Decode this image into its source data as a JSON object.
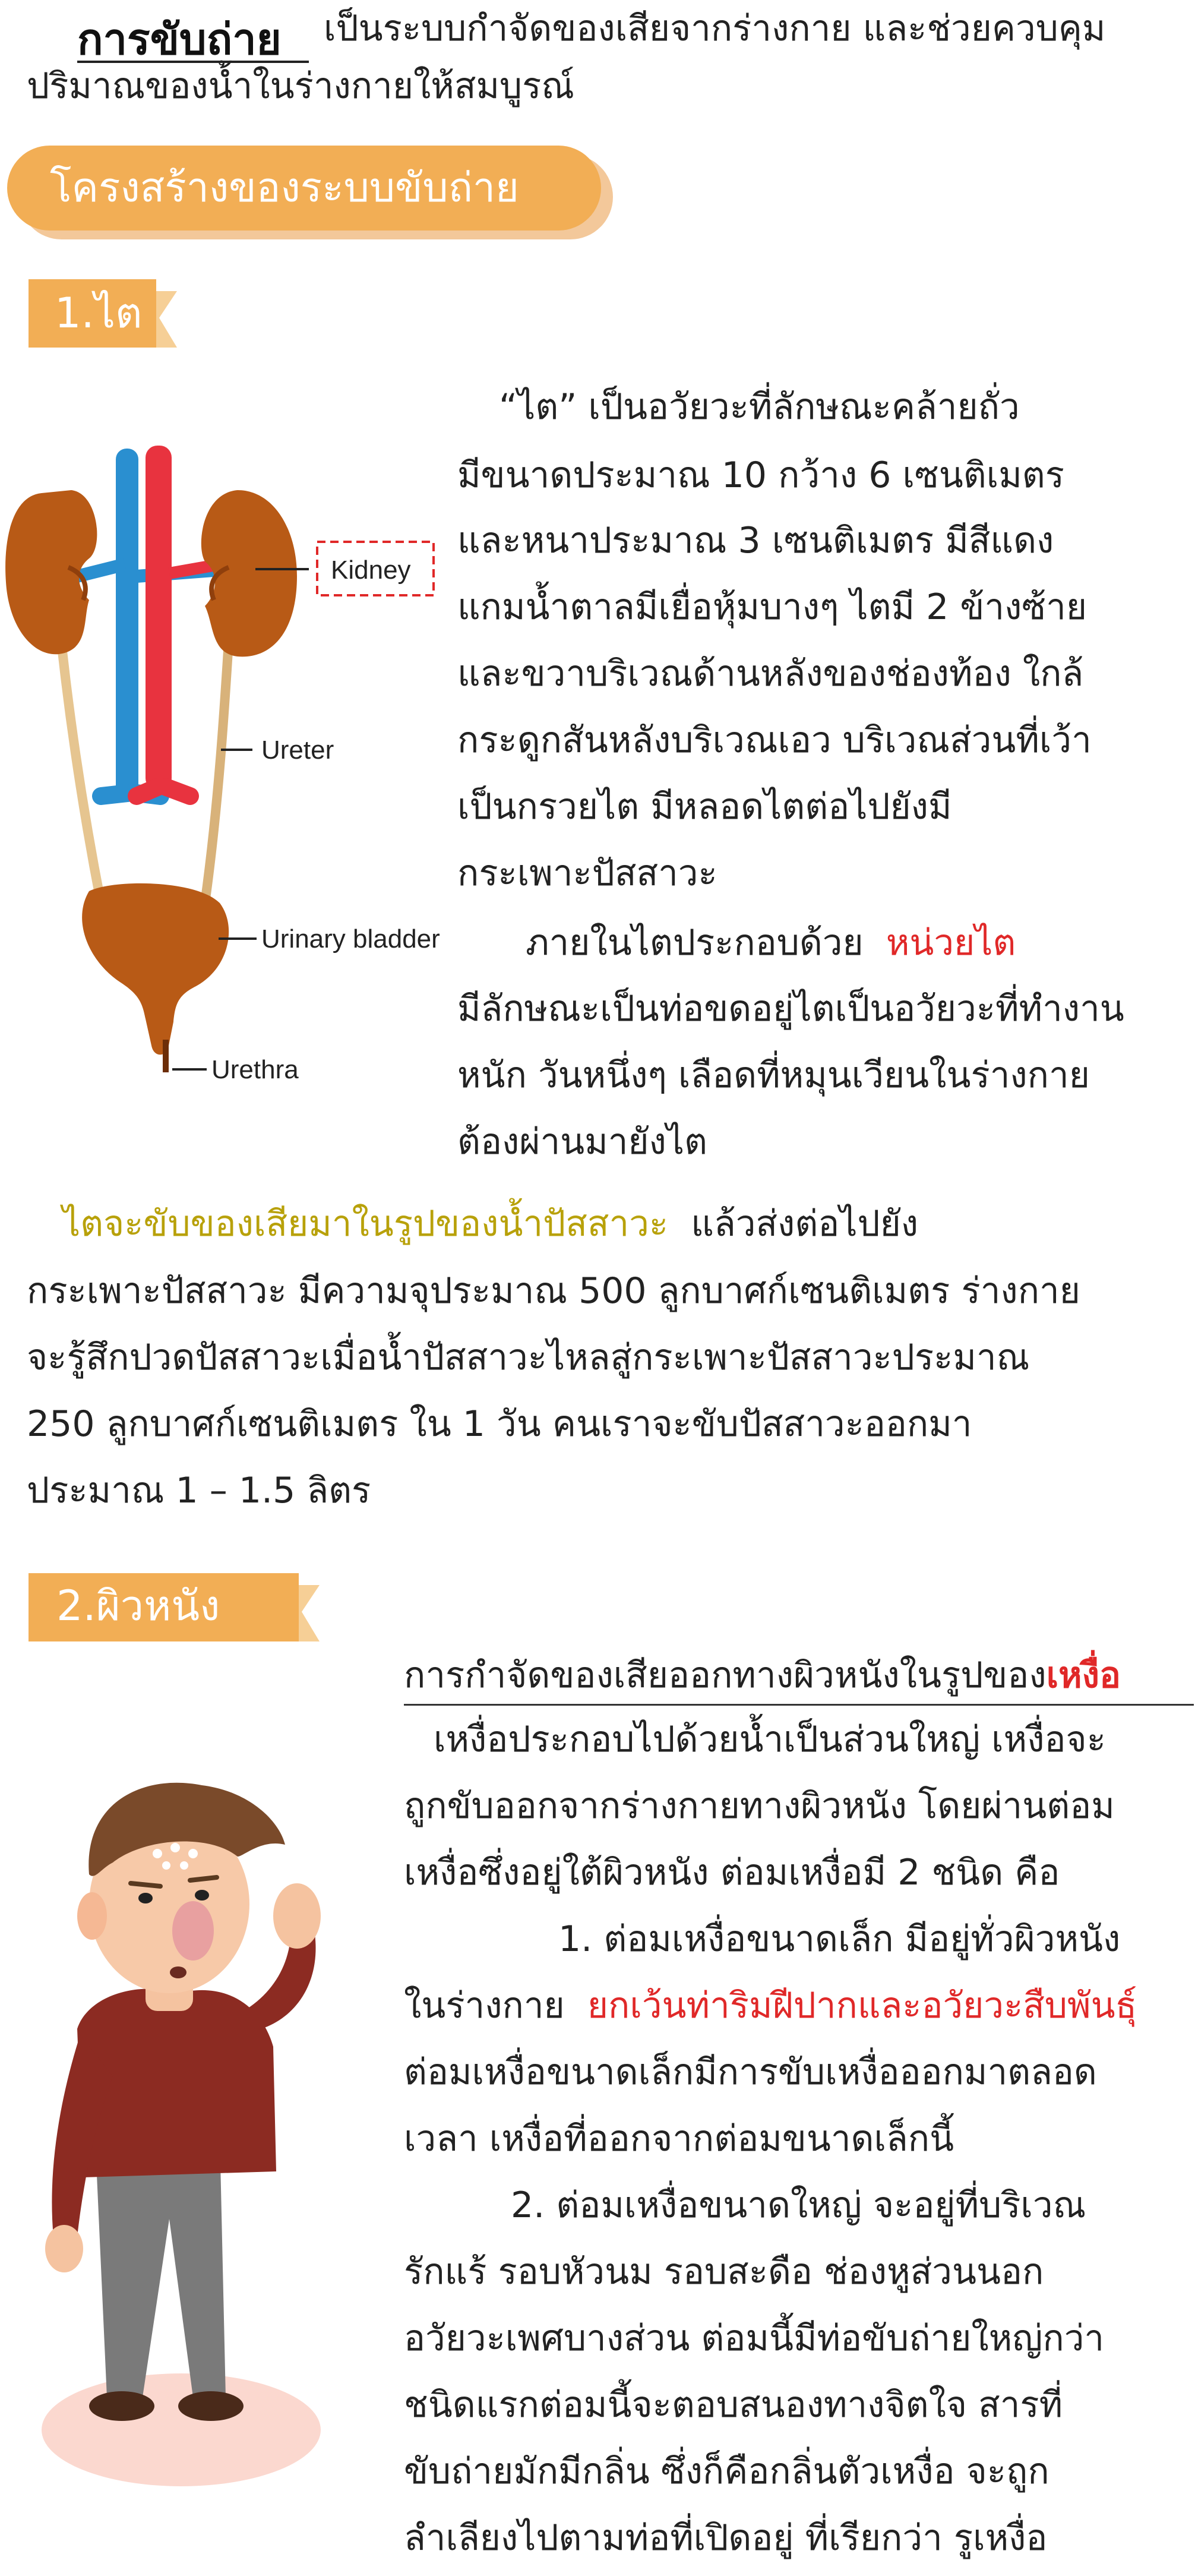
{
  "intro": {
    "title": "การขับถ่าย",
    "line1_rest": "เป็นระบบกำจัดของเสียจากร่างกาย และช่วยควบคุม",
    "line2": "ปริมาณของน้ำในร่างกายให้สมบูรณ์"
  },
  "banner": {
    "label": "โครงสร้างของระบบขับถ่าย",
    "fill": "#f2ae55",
    "shadow": "#f3c89a"
  },
  "kidney_section": {
    "heading": "1.ไต",
    "lines": [
      "“ไต” เป็นอวัยวะที่ลักษณะคล้ายถั่ว",
      "มีขนาดประมาณ 10 กว้าง 6 เซนติเมตร",
      "และหนาประมาณ 3 เซนติเมตร มีสีแดง",
      "แกมน้ำตาลมีเยื่อหุ้มบางๆ ไตมี 2 ข้างซ้าย",
      "และขวาบริเวณด้านหลังของช่องท้อง ใกล้",
      "กระดูกสันหลังบริเวณเอว บริเวณส่วนที่เว้า",
      "เป็นกรวยไต มีหลอดไตต่อไปยังมี",
      "กระเพาะปัสสาวะ"
    ],
    "nephron_prefix": "ภายในไตประกอบด้วย",
    "nephron_term": "หน่วยไต",
    "nephron_lines": [
      "มีลักษณะเป็นท่อขดอยู่ไตเป็นอวัยวะที่ทำงาน",
      "หนัก วันหนึ่งๆ เลือดที่หมุนเวียนในร่างกาย",
      "ต้องผ่านมายังไต"
    ],
    "urine_highlight": "ไตจะขับของเสียมาในรูปของน้ำปัสสาวะ",
    "urine_rest": "แล้วส่งต่อไปยัง",
    "urine_lines": [
      "กระเพาะปัสสาวะ มีความจุประมาณ 500 ลูกบาศก์เซนติเมตร ร่างกาย",
      "จะรู้สึกปวดปัสสาวะเมื่อน้ำปัสสาวะไหลสู่กระเพาะปัสสาวะประมาณ",
      "250 ลูกบาศก์เซนติเมตร ใน 1 วัน คนเราจะขับปัสสาวะออกมา",
      "ประมาณ 1 – 1.5 ลิตร"
    ],
    "diagram": {
      "kidney_label": "Kidney",
      "ureter_label": "Ureter",
      "bladder_label": "Urinary bladder",
      "urethra_label": "Urethra"
    }
  },
  "skin_section": {
    "heading": "2.ผิวหนัง",
    "subtitle_prefix": "การกำจัดของเสียออกทางผิวหนังในรูปของ",
    "subtitle_term": "เหงื่อ",
    "lines": [
      "เหงื่อประกอบไปด้วยน้ำเป็นส่วนใหญ่ เหงื่อจะ",
      "ถูกขับออกจากร่างกายทางผิวหนัง โดยผ่านต่อม",
      "เหงื่อซึ่งอยู่ใต้ผิวหนัง ต่อมเหงื่อมี 2 ชนิด คือ",
      "1. ต่อมเหงื่อขนาดเล็ก มีอยู่ทั่วผิวหนัง"
    ],
    "small_gland_prefix": "ในร่างกาย",
    "small_gland_except": "ยกเว้นท่าริมฝีปากและอวัยวะสืบพันธุ์",
    "lines_after": [
      "ต่อมเหงื่อขนาดเล็กมีการขับเหงื่อออกมาตลอด",
      "เวลา เหงื่อที่ออกจากต่อมขนาดเล็กนี้",
      "2. ต่อมเหงื่อขนาดใหญ่ จะอยู่ที่บริเวณ",
      "รักแร้ รอบหัวนม รอบสะดือ ช่องหูส่วนนอก",
      "อวัยวะเพศบางส่วน ต่อมนี้มีท่อขับถ่ายใหญ่กว่า",
      "ชนิดแรกต่อมนี้จะตอบสนองทางจิตใจ สารที่",
      "ขับถ่ายมักมีกลิ่น ซึ่งก็คือกลิ่นตัวเหงื่อ จะถูก",
      "ลำเลียงไปตามท่อที่เปิดอยู่ ที่เรียกว่า รูเหงื่อ"
    ]
  },
  "colors": {
    "ribbon": "#f2ae55",
    "ribbon_tail": "#f6cf96",
    "accent_red": "#e02828",
    "accent_olive": "#b8a10a"
  }
}
